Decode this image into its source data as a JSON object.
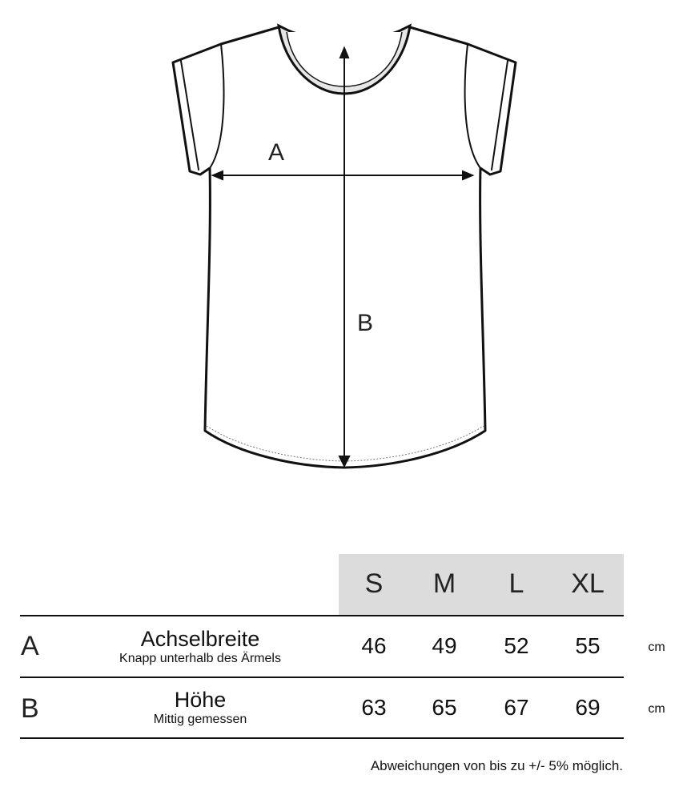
{
  "diagram": {
    "label_a": "A",
    "label_b": "B"
  },
  "table": {
    "sizes": [
      "S",
      "M",
      "L",
      "XL"
    ],
    "header_bg": "#dcdcdc",
    "rows": [
      {
        "letter": "A",
        "title": "Achselbreite",
        "subtitle": "Knapp unterhalb des Ärmels",
        "values": [
          "46",
          "49",
          "52",
          "55"
        ],
        "unit": "cm"
      },
      {
        "letter": "B",
        "title": "Höhe",
        "subtitle": "Mittig gemessen",
        "values": [
          "63",
          "65",
          "67",
          "69"
        ],
        "unit": "cm"
      }
    ]
  },
  "note": "Abweichungen von bis zu +/- 5% möglich."
}
